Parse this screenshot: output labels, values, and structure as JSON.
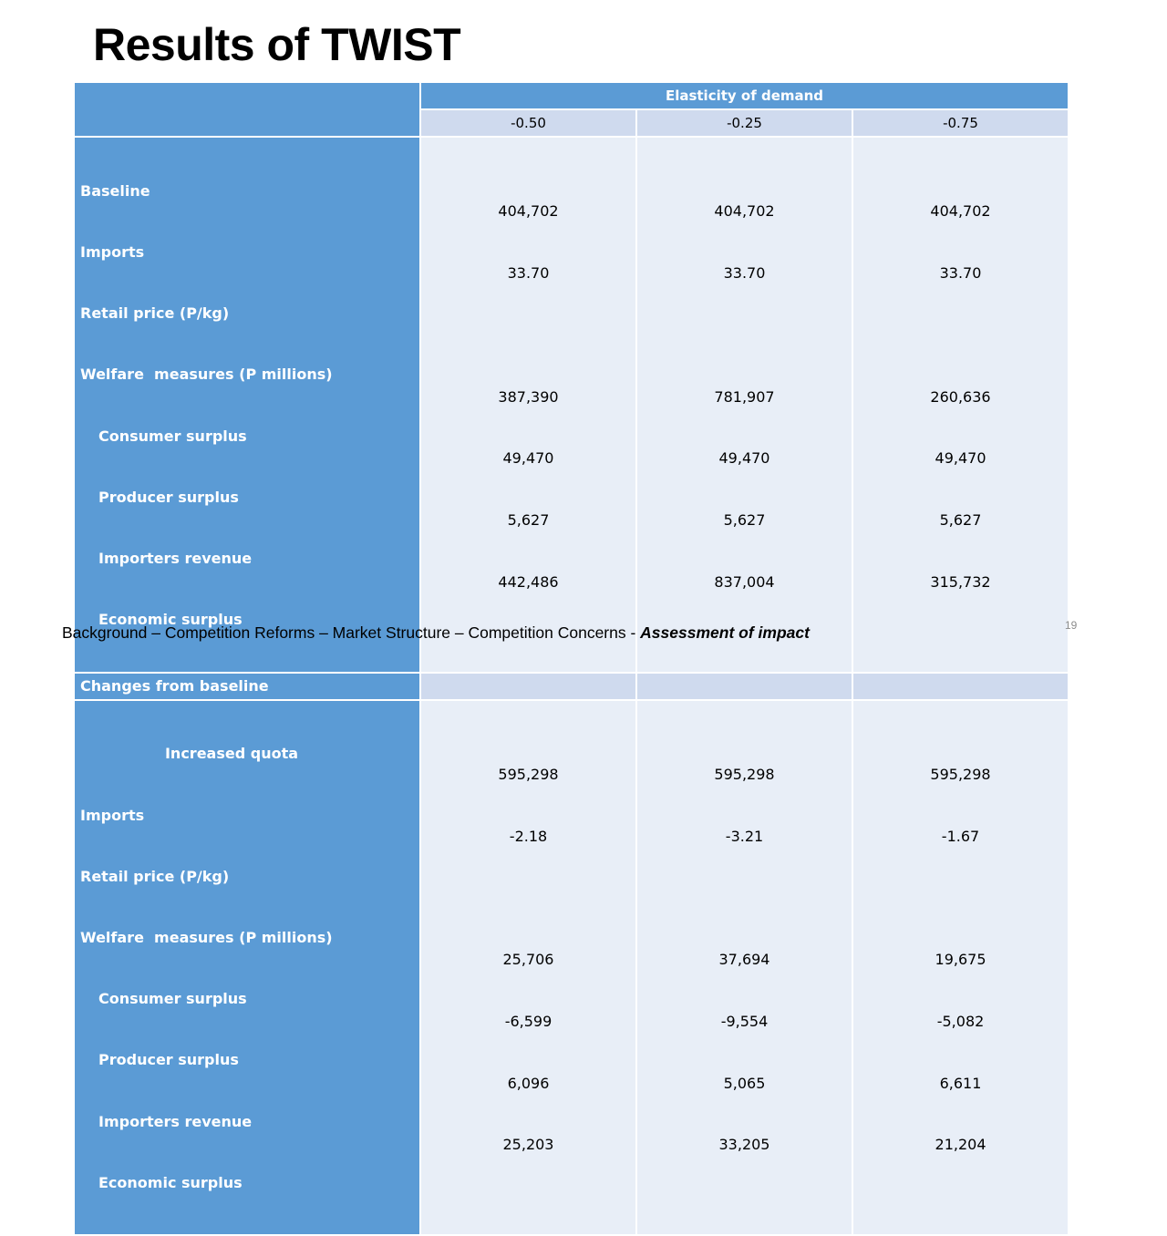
{
  "slide": {
    "title": "Results of TWIST",
    "page_number": "19",
    "footer": {
      "text": "Background – Competition Reforms – Market Structure – Competition Concerns - ",
      "emphasis": "Assessment of impact"
    }
  },
  "table": {
    "header": "Elasticity of demand",
    "columns": [
      "-0.50",
      "-0.25",
      "-0.75"
    ],
    "baseline": {
      "labels": [
        "Baseline",
        "Imports",
        "Retail price (P/kg)",
        "Welfare  measures (P millions)",
        "Consumer surplus",
        "Producer surplus",
        "Importers revenue",
        "Economic surplus"
      ],
      "values": [
        [
          "404,702",
          "33.70",
          "",
          "387,390",
          "49,470",
          "5,627",
          "442,486"
        ],
        [
          "404,702",
          "33.70",
          "",
          "781,907",
          "49,470",
          "5,627",
          "837,004"
        ],
        [
          "404,702",
          "33.70",
          "",
          "260,636",
          "49,470",
          "5,627",
          "315,732"
        ]
      ]
    },
    "changes_label": "Changes from baseline",
    "increased_quota": {
      "labels": [
        "Increased quota",
        "Imports",
        "Retail price (P/kg)",
        "Welfare  measures (P millions)",
        "Consumer surplus",
        "Producer surplus",
        "Importers revenue",
        "Economic surplus"
      ],
      "values": [
        [
          "595,298",
          "-2.18",
          "",
          "25,706",
          "-6,599",
          "6,096",
          "25,203"
        ],
        [
          "595,298",
          "-3.21",
          "",
          "37,694",
          "-9,554",
          "5,065",
          "33,205"
        ],
        [
          "595,298",
          "-1.67",
          "",
          "19,675",
          "-5,082",
          "6,611",
          "21,204"
        ]
      ]
    }
  }
}
